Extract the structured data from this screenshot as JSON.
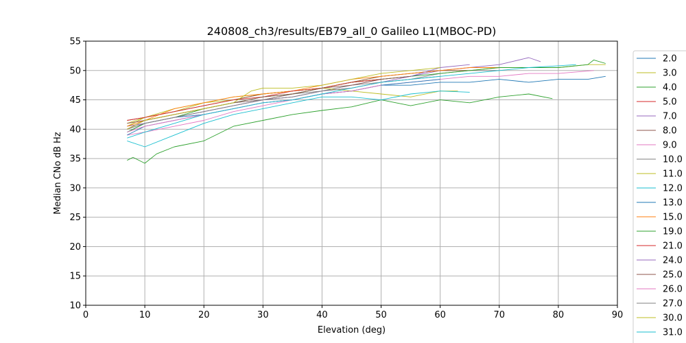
{
  "chart_data": {
    "type": "line",
    "title": "240808_ch3/results/EB79_all_0 Galileo L1(MBOC-PD)",
    "xlabel": "Elevation (deg)",
    "ylabel": "Median CNo dB Hz",
    "xlim": [
      0,
      90
    ],
    "ylim": [
      10,
      55
    ],
    "xticks": [
      0,
      10,
      20,
      30,
      40,
      50,
      60,
      70,
      80,
      90
    ],
    "yticks": [
      10,
      15,
      20,
      25,
      30,
      35,
      40,
      45,
      50,
      55
    ],
    "grid": true,
    "legend_position": "right, outside plot",
    "series": [
      {
        "name": "2.0",
        "color": "#1f77b4",
        "x": [
          7,
          10,
          15,
          20,
          25,
          30,
          35,
          40,
          45,
          50,
          55,
          60,
          65,
          70,
          75,
          80,
          85,
          88
        ],
        "y": [
          39.5,
          41.0,
          42.0,
          42.5,
          43.5,
          44.5,
          45.0,
          46.0,
          46.5,
          47.5,
          47.5,
          48.0,
          48.0,
          48.5,
          48.0,
          48.5,
          48.5,
          49.0
        ]
      },
      {
        "name": "3.0",
        "color": "#bcbd22",
        "x": [
          7,
          10,
          15,
          20,
          25,
          30,
          35,
          40,
          45,
          50,
          55,
          60,
          65,
          70,
          75,
          80,
          85,
          88
        ],
        "y": [
          41.0,
          42.0,
          43.0,
          44.5,
          45.0,
          46.0,
          46.5,
          47.0,
          48.0,
          49.0,
          49.5,
          50.0,
          50.0,
          50.5,
          50.5,
          50.5,
          51.0,
          51.0
        ]
      },
      {
        "name": "4.0",
        "color": "#2ca02c",
        "x": [
          7,
          8,
          10,
          12,
          15,
          20,
          25,
          30,
          35,
          40,
          45,
          50,
          55,
          60,
          65,
          70,
          75,
          79
        ],
        "y": [
          34.7,
          35.2,
          34.2,
          35.8,
          37.0,
          38.0,
          40.5,
          41.5,
          42.5,
          43.2,
          43.8,
          45.0,
          44.0,
          45.0,
          44.5,
          45.5,
          46.0,
          45.2
        ]
      },
      {
        "name": "5.0",
        "color": "#d62728",
        "x": [
          7,
          10,
          15,
          20,
          25,
          30,
          35,
          40,
          45,
          50,
          55
        ],
        "y": [
          40.0,
          41.5,
          42.5,
          43.5,
          44.5,
          45.0,
          46.0,
          47.0,
          48.0,
          48.5,
          49.0
        ]
      },
      {
        "name": "7.0",
        "color": "#9467bd",
        "x": [
          7,
          10,
          15,
          20,
          25,
          30,
          35,
          40,
          45,
          50,
          55,
          60,
          65,
          70,
          75,
          77
        ],
        "y": [
          40.5,
          41.0,
          42.0,
          43.0,
          44.0,
          45.0,
          45.5,
          46.5,
          47.5,
          48.5,
          49.0,
          50.0,
          50.5,
          51.0,
          52.2,
          51.5
        ]
      },
      {
        "name": "8.0",
        "color": "#8c564b",
        "x": [
          7,
          10,
          15,
          20,
          25,
          30,
          35,
          40,
          45,
          50,
          55,
          60,
          65
        ],
        "y": [
          41.5,
          42.0,
          43.0,
          44.0,
          45.0,
          46.0,
          46.5,
          47.0,
          48.0,
          49.0,
          49.5,
          50.0,
          50.0
        ]
      },
      {
        "name": "9.0",
        "color": "#e377c2",
        "x": [
          7,
          10,
          15,
          20,
          25,
          30,
          35,
          40,
          45,
          50,
          55,
          60,
          65,
          70,
          75,
          80,
          86
        ],
        "y": [
          39.0,
          39.5,
          40.5,
          41.5,
          43.0,
          44.0,
          45.0,
          46.0,
          46.5,
          47.5,
          48.0,
          48.5,
          49.0,
          49.0,
          49.5,
          49.5,
          50.0
        ]
      },
      {
        "name": "10.0",
        "color": "#7f7f7f",
        "x": [
          7,
          10,
          15,
          20,
          25,
          30,
          35,
          40,
          45,
          50,
          55,
          60,
          65,
          70
        ],
        "y": [
          40.0,
          41.5,
          42.5,
          43.5,
          44.5,
          45.0,
          46.0,
          46.5,
          47.5,
          48.0,
          48.5,
          49.5,
          50.0,
          50.0
        ]
      },
      {
        "name": "11.0",
        "color": "#bcbd22",
        "x": [
          7,
          10,
          15,
          20,
          25,
          30,
          35,
          40,
          45,
          50,
          55,
          60,
          63
        ],
        "y": [
          40.5,
          42.0,
          43.5,
          44.5,
          45.5,
          46.0,
          46.5,
          47.0,
          46.5,
          46.0,
          45.5,
          46.5,
          46.5
        ]
      },
      {
        "name": "12.0",
        "color": "#17becf",
        "x": [
          7,
          10,
          15,
          20,
          25,
          30,
          35,
          40,
          45,
          50,
          55,
          60,
          65
        ],
        "y": [
          38.0,
          37.0,
          39.0,
          41.0,
          42.5,
          43.5,
          44.5,
          45.5,
          45.5,
          45.0,
          46.0,
          46.5,
          46.3
        ]
      },
      {
        "name": "13.0",
        "color": "#1f77b4",
        "x": [
          7,
          10,
          15,
          20,
          25,
          30,
          35,
          40,
          45,
          50,
          55,
          60
        ],
        "y": [
          39.0,
          40.5,
          41.5,
          42.5,
          43.5,
          44.5,
          45.0,
          46.0,
          46.5,
          47.5,
          48.0,
          48.5
        ]
      },
      {
        "name": "15.0",
        "color": "#ff7f0e",
        "x": [
          7,
          10,
          15,
          20,
          25,
          30,
          35,
          40,
          45,
          50,
          55,
          60,
          65,
          70,
          75
        ],
        "y": [
          40.5,
          41.5,
          43.5,
          44.5,
          45.5,
          46.0,
          46.5,
          47.5,
          48.5,
          49.0,
          49.5,
          50.0,
          50.5,
          50.5,
          50.5
        ]
      },
      {
        "name": "19.0",
        "color": "#2ca02c",
        "x": [
          7,
          10,
          15,
          20,
          25,
          30,
          35,
          40,
          45,
          50,
          55,
          60,
          65,
          70,
          75,
          80,
          85,
          86,
          88
        ],
        "y": [
          39.5,
          41.0,
          42.0,
          43.5,
          44.5,
          45.5,
          46.0,
          47.0,
          48.0,
          48.5,
          49.0,
          49.5,
          50.0,
          50.5,
          50.5,
          50.5,
          51.0,
          51.8,
          51.2
        ]
      },
      {
        "name": "21.0",
        "color": "#d62728",
        "x": [
          7,
          10,
          15,
          20,
          25,
          30,
          35,
          40,
          45,
          50
        ],
        "y": [
          41.5,
          42.0,
          43.0,
          44.0,
          45.0,
          45.5,
          46.5,
          47.0,
          48.0,
          48.5
        ]
      },
      {
        "name": "24.0",
        "color": "#9467bd",
        "x": [
          7,
          10,
          15,
          20,
          25,
          30,
          35,
          40,
          45,
          50,
          55,
          60,
          65
        ],
        "y": [
          40.0,
          41.0,
          42.0,
          43.0,
          44.0,
          45.0,
          45.5,
          46.5,
          47.0,
          48.0,
          49.0,
          50.5,
          51.0
        ]
      },
      {
        "name": "25.0",
        "color": "#8c564b",
        "x": [
          7,
          10,
          15,
          20,
          25,
          30,
          35,
          40,
          45,
          50,
          55
        ],
        "y": [
          41.0,
          41.5,
          42.5,
          43.5,
          44.5,
          45.5,
          46.0,
          47.0,
          47.5,
          48.5,
          49.0
        ]
      },
      {
        "name": "26.0",
        "color": "#e377c2",
        "x": [
          7,
          10,
          15,
          20,
          25,
          30,
          35,
          40,
          45,
          50
        ],
        "y": [
          39.5,
          40.5,
          41.5,
          42.5,
          43.5,
          44.5,
          45.0,
          46.0,
          46.5,
          47.5
        ]
      },
      {
        "name": "27.0",
        "color": "#7f7f7f",
        "x": [
          7,
          10,
          15,
          20,
          25,
          30,
          35,
          40,
          45,
          50,
          55,
          60
        ],
        "y": [
          40.0,
          41.0,
          42.0,
          43.0,
          44.0,
          45.0,
          45.5,
          46.5,
          47.0,
          48.0,
          48.5,
          49.0
        ]
      },
      {
        "name": "30.0",
        "color": "#bcbd22",
        "x": [
          7,
          10,
          15,
          20,
          25,
          28,
          30,
          35,
          40,
          45,
          50,
          55,
          60
        ],
        "y": [
          40.0,
          41.5,
          42.5,
          43.5,
          44.5,
          46.5,
          47.0,
          47.0,
          47.5,
          48.5,
          49.5,
          50.0,
          50.5
        ]
      },
      {
        "name": "31.0",
        "color": "#17becf",
        "x": [
          7,
          10,
          15,
          20,
          25,
          30,
          35,
          40,
          45,
          50,
          55,
          60,
          65,
          70,
          75,
          80,
          83
        ],
        "y": [
          38.5,
          39.5,
          41.0,
          42.5,
          43.5,
          44.5,
          45.0,
          46.0,
          47.0,
          48.0,
          48.5,
          49.0,
          49.5,
          50.0,
          50.5,
          50.8,
          51.0
        ]
      }
    ]
  }
}
